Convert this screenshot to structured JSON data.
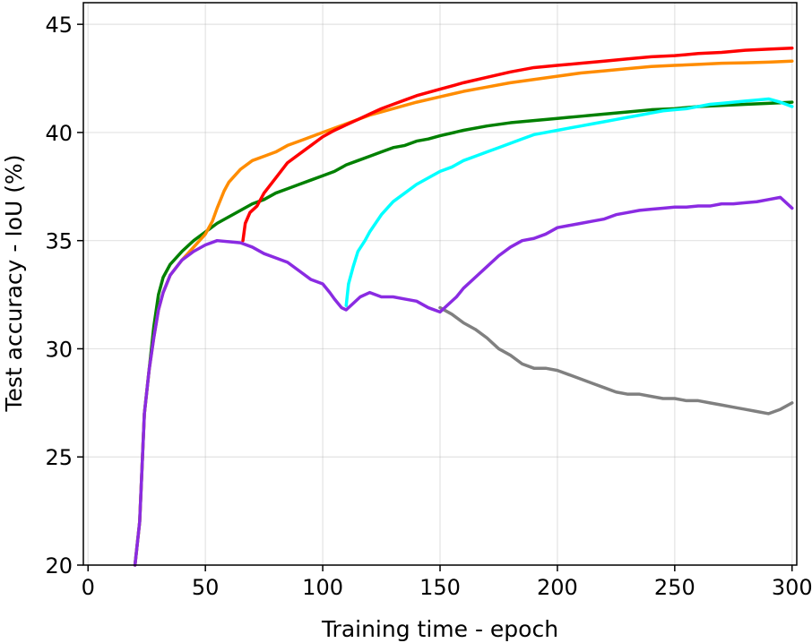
{
  "chart_data": {
    "type": "line",
    "title": "",
    "xlabel": "Training time - epoch",
    "ylabel": "Test accuracy - IoU (%)",
    "xlim": [
      -2,
      302
    ],
    "ylim": [
      20,
      46
    ],
    "xticks": [
      0,
      50,
      100,
      150,
      200,
      250,
      300
    ],
    "yticks": [
      20,
      25,
      30,
      35,
      40,
      45
    ],
    "xtick_labels": [
      "0",
      "50",
      "100",
      "150",
      "200",
      "250",
      "300"
    ],
    "ytick_labels": [
      "20",
      "25",
      "30",
      "35",
      "40",
      "45"
    ],
    "grid": true,
    "legend": "none",
    "series": [
      {
        "color": "#808080",
        "points": [
          [
            150,
            31.9
          ],
          [
            155,
            31.6
          ],
          [
            160,
            31.2
          ],
          [
            165,
            30.9
          ],
          [
            170,
            30.5
          ],
          [
            175,
            30.0
          ],
          [
            180,
            29.7
          ],
          [
            185,
            29.3
          ],
          [
            190,
            29.1
          ],
          [
            195,
            29.1
          ],
          [
            200,
            29.0
          ],
          [
            205,
            28.8
          ],
          [
            210,
            28.6
          ],
          [
            215,
            28.4
          ],
          [
            220,
            28.2
          ],
          [
            225,
            28.0
          ],
          [
            230,
            27.9
          ],
          [
            235,
            27.9
          ],
          [
            240,
            27.8
          ],
          [
            245,
            27.7
          ],
          [
            250,
            27.7
          ],
          [
            255,
            27.6
          ],
          [
            260,
            27.6
          ],
          [
            265,
            27.5
          ],
          [
            270,
            27.4
          ],
          [
            275,
            27.3
          ],
          [
            280,
            27.2
          ],
          [
            285,
            27.1
          ],
          [
            290,
            27.0
          ],
          [
            295,
            27.2
          ],
          [
            300,
            27.5
          ]
        ]
      },
      {
        "color": "#008000",
        "points": [
          [
            20,
            20.0
          ],
          [
            22,
            22.0
          ],
          [
            24,
            27.0
          ],
          [
            26,
            29.0
          ],
          [
            28,
            31.0
          ],
          [
            30,
            32.5
          ],
          [
            32,
            33.3
          ],
          [
            35,
            33.9
          ],
          [
            40,
            34.5
          ],
          [
            45,
            35.0
          ],
          [
            50,
            35.4
          ],
          [
            55,
            35.8
          ],
          [
            60,
            36.1
          ],
          [
            65,
            36.4
          ],
          [
            70,
            36.7
          ],
          [
            75,
            36.9
          ],
          [
            80,
            37.2
          ],
          [
            85,
            37.4
          ],
          [
            90,
            37.6
          ],
          [
            95,
            37.8
          ],
          [
            100,
            38.0
          ],
          [
            105,
            38.2
          ],
          [
            110,
            38.5
          ],
          [
            115,
            38.7
          ],
          [
            120,
            38.9
          ],
          [
            125,
            39.1
          ],
          [
            130,
            39.3
          ],
          [
            135,
            39.4
          ],
          [
            140,
            39.6
          ],
          [
            145,
            39.7
          ],
          [
            150,
            39.85
          ],
          [
            160,
            40.1
          ],
          [
            170,
            40.3
          ],
          [
            180,
            40.45
          ],
          [
            190,
            40.55
          ],
          [
            200,
            40.65
          ],
          [
            210,
            40.75
          ],
          [
            220,
            40.85
          ],
          [
            230,
            40.95
          ],
          [
            240,
            41.05
          ],
          [
            250,
            41.1
          ],
          [
            260,
            41.2
          ],
          [
            270,
            41.25
          ],
          [
            280,
            41.3
          ],
          [
            290,
            41.35
          ],
          [
            300,
            41.4
          ]
        ]
      },
      {
        "color": "#00ffff",
        "points": [
          [
            110,
            32.0
          ],
          [
            111,
            33.0
          ],
          [
            113,
            33.8
          ],
          [
            115,
            34.5
          ],
          [
            118,
            35.0
          ],
          [
            120,
            35.4
          ],
          [
            125,
            36.2
          ],
          [
            130,
            36.8
          ],
          [
            135,
            37.2
          ],
          [
            140,
            37.6
          ],
          [
            145,
            37.9
          ],
          [
            150,
            38.2
          ],
          [
            155,
            38.4
          ],
          [
            160,
            38.7
          ],
          [
            165,
            38.9
          ],
          [
            170,
            39.1
          ],
          [
            175,
            39.3
          ],
          [
            180,
            39.5
          ],
          [
            185,
            39.7
          ],
          [
            190,
            39.9
          ],
          [
            195,
            40.0
          ],
          [
            200,
            40.1
          ],
          [
            205,
            40.2
          ],
          [
            210,
            40.3
          ],
          [
            215,
            40.4
          ],
          [
            220,
            40.5
          ],
          [
            225,
            40.6
          ],
          [
            230,
            40.7
          ],
          [
            235,
            40.8
          ],
          [
            240,
            40.9
          ],
          [
            245,
            41.0
          ],
          [
            250,
            41.05
          ],
          [
            255,
            41.1
          ],
          [
            260,
            41.2
          ],
          [
            265,
            41.3
          ],
          [
            270,
            41.35
          ],
          [
            275,
            41.4
          ],
          [
            280,
            41.45
          ],
          [
            285,
            41.5
          ],
          [
            290,
            41.55
          ],
          [
            295,
            41.4
          ],
          [
            300,
            41.2
          ]
        ]
      },
      {
        "color": "#ff8c00",
        "points": [
          [
            20,
            20.0
          ],
          [
            22,
            22.0
          ],
          [
            24,
            27.0
          ],
          [
            26,
            29.0
          ],
          [
            28,
            30.5
          ],
          [
            30,
            31.8
          ],
          [
            32,
            32.6
          ],
          [
            35,
            33.4
          ],
          [
            40,
            34.1
          ],
          [
            45,
            34.7
          ],
          [
            50,
            35.3
          ],
          [
            53,
            35.9
          ],
          [
            55,
            36.5
          ],
          [
            58,
            37.3
          ],
          [
            60,
            37.7
          ],
          [
            65,
            38.3
          ],
          [
            70,
            38.7
          ],
          [
            75,
            38.9
          ],
          [
            80,
            39.1
          ],
          [
            85,
            39.4
          ],
          [
            90,
            39.6
          ],
          [
            95,
            39.8
          ],
          [
            100,
            40.0
          ],
          [
            110,
            40.4
          ],
          [
            120,
            40.8
          ],
          [
            130,
            41.1
          ],
          [
            140,
            41.4
          ],
          [
            150,
            41.65
          ],
          [
            160,
            41.9
          ],
          [
            170,
            42.1
          ],
          [
            180,
            42.3
          ],
          [
            190,
            42.45
          ],
          [
            200,
            42.6
          ],
          [
            210,
            42.75
          ],
          [
            220,
            42.85
          ],
          [
            230,
            42.95
          ],
          [
            240,
            43.05
          ],
          [
            250,
            43.1
          ],
          [
            260,
            43.15
          ],
          [
            270,
            43.2
          ],
          [
            280,
            43.22
          ],
          [
            290,
            43.25
          ],
          [
            300,
            43.3
          ]
        ]
      },
      {
        "color": "#ff0000",
        "points": [
          [
            66,
            35.0
          ],
          [
            67,
            35.8
          ],
          [
            69,
            36.3
          ],
          [
            72,
            36.6
          ],
          [
            75,
            37.2
          ],
          [
            80,
            37.9
          ],
          [
            85,
            38.6
          ],
          [
            90,
            39.0
          ],
          [
            95,
            39.4
          ],
          [
            100,
            39.8
          ],
          [
            105,
            40.1
          ],
          [
            110,
            40.35
          ],
          [
            115,
            40.6
          ],
          [
            120,
            40.85
          ],
          [
            125,
            41.1
          ],
          [
            130,
            41.3
          ],
          [
            135,
            41.5
          ],
          [
            140,
            41.7
          ],
          [
            145,
            41.85
          ],
          [
            150,
            42.0
          ],
          [
            160,
            42.3
          ],
          [
            170,
            42.55
          ],
          [
            180,
            42.8
          ],
          [
            190,
            43.0
          ],
          [
            200,
            43.1
          ],
          [
            210,
            43.2
          ],
          [
            220,
            43.3
          ],
          [
            230,
            43.4
          ],
          [
            240,
            43.5
          ],
          [
            250,
            43.55
          ],
          [
            260,
            43.65
          ],
          [
            270,
            43.7
          ],
          [
            280,
            43.8
          ],
          [
            290,
            43.85
          ],
          [
            300,
            43.9
          ]
        ]
      },
      {
        "color": "#8a2be2",
        "points": [
          [
            20,
            20.0
          ],
          [
            22,
            22.0
          ],
          [
            24,
            27.0
          ],
          [
            26,
            29.0
          ],
          [
            28,
            30.5
          ],
          [
            30,
            31.8
          ],
          [
            32,
            32.6
          ],
          [
            35,
            33.4
          ],
          [
            40,
            34.1
          ],
          [
            45,
            34.5
          ],
          [
            50,
            34.8
          ],
          [
            55,
            35.0
          ],
          [
            60,
            34.95
          ],
          [
            65,
            34.9
          ],
          [
            70,
            34.7
          ],
          [
            75,
            34.4
          ],
          [
            80,
            34.2
          ],
          [
            85,
            34.0
          ],
          [
            90,
            33.6
          ],
          [
            95,
            33.2
          ],
          [
            100,
            33.0
          ],
          [
            103,
            32.6
          ],
          [
            105,
            32.3
          ],
          [
            108,
            31.9
          ],
          [
            110,
            31.8
          ],
          [
            113,
            32.1
          ],
          [
            116,
            32.4
          ],
          [
            120,
            32.6
          ],
          [
            125,
            32.4
          ],
          [
            130,
            32.4
          ],
          [
            135,
            32.3
          ],
          [
            140,
            32.2
          ],
          [
            145,
            31.9
          ],
          [
            150,
            31.7
          ],
          [
            153,
            32.0
          ],
          [
            157,
            32.4
          ],
          [
            160,
            32.8
          ],
          [
            165,
            33.3
          ],
          [
            170,
            33.8
          ],
          [
            175,
            34.3
          ],
          [
            180,
            34.7
          ],
          [
            185,
            35.0
          ],
          [
            190,
            35.1
          ],
          [
            195,
            35.3
          ],
          [
            200,
            35.6
          ],
          [
            205,
            35.7
          ],
          [
            210,
            35.8
          ],
          [
            215,
            35.9
          ],
          [
            220,
            36.0
          ],
          [
            225,
            36.2
          ],
          [
            230,
            36.3
          ],
          [
            235,
            36.4
          ],
          [
            240,
            36.45
          ],
          [
            245,
            36.5
          ],
          [
            250,
            36.55
          ],
          [
            255,
            36.55
          ],
          [
            260,
            36.6
          ],
          [
            265,
            36.6
          ],
          [
            270,
            36.7
          ],
          [
            275,
            36.7
          ],
          [
            280,
            36.75
          ],
          [
            285,
            36.8
          ],
          [
            290,
            36.9
          ],
          [
            295,
            37.0
          ],
          [
            300,
            36.5
          ]
        ]
      }
    ]
  }
}
